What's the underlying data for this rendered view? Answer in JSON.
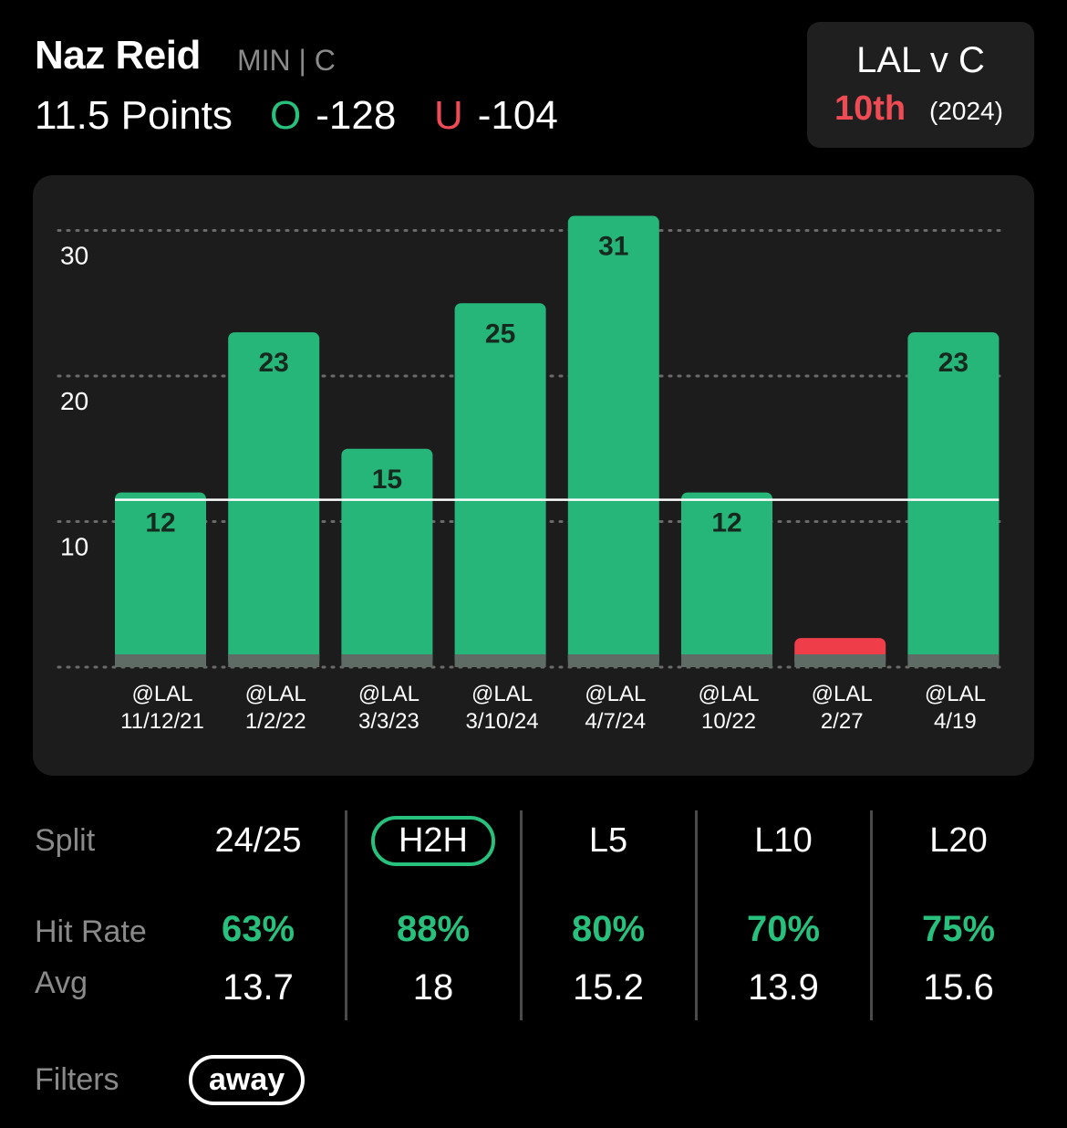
{
  "header": {
    "player_name": "Naz Reid",
    "team_position": "MIN | C",
    "prop_line": "11.5 Points",
    "over_letter": "O",
    "over_odds": "-128",
    "under_letter": "U",
    "under_odds": "-104"
  },
  "matchup": {
    "title": "LAL v C",
    "rank": "10th",
    "year": "(2024)"
  },
  "chart_data": {
    "type": "bar",
    "categories": [
      [
        "@LAL",
        "11/12/21"
      ],
      [
        "@LAL",
        "1/2/22"
      ],
      [
        "@LAL",
        "3/3/23"
      ],
      [
        "@LAL",
        "3/10/24"
      ],
      [
        "@LAL",
        "4/7/24"
      ],
      [
        "@LAL",
        "10/22"
      ],
      [
        "@LAL",
        "2/27"
      ],
      [
        "@LAL",
        "4/19"
      ]
    ],
    "values": [
      12,
      23,
      15,
      25,
      31,
      12,
      2,
      23
    ],
    "value_labels": [
      "12",
      "23",
      "15",
      "25",
      "31",
      "12",
      "",
      "23"
    ],
    "line": 11.5,
    "ylim": [
      0,
      31
    ],
    "yticks": [
      10,
      20,
      30
    ],
    "grid": true,
    "colors": {
      "over": "#27b679",
      "under": "#ef3e4a",
      "base": "#5f6b65",
      "line": "#ffffff"
    }
  },
  "splits": {
    "row_labels": {
      "split": "Split",
      "hit_rate": "Hit Rate",
      "avg": "Avg"
    },
    "columns": [
      {
        "label": "24/25",
        "hit_rate": "63%",
        "avg": "13.7",
        "active": false
      },
      {
        "label": "H2H",
        "hit_rate": "88%",
        "avg": "18",
        "active": true
      },
      {
        "label": "L5",
        "hit_rate": "80%",
        "avg": "15.2",
        "active": false
      },
      {
        "label": "L10",
        "hit_rate": "70%",
        "avg": "13.9",
        "active": false
      },
      {
        "label": "L20",
        "hit_rate": "75%",
        "avg": "15.6",
        "active": false
      }
    ]
  },
  "filters": {
    "label": "Filters",
    "chip": "away"
  }
}
